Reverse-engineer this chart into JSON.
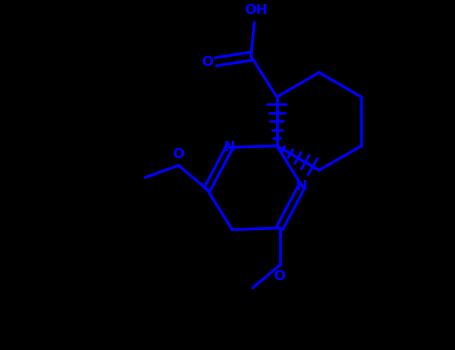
{
  "bg_color": "#000000",
  "bond_color": "#0000FF",
  "text_color": "#0000FF",
  "line_width": 2.0,
  "figsize": [
    4.55,
    3.5
  ],
  "dpi": 100,
  "xlim": [
    -2.8,
    2.8
  ],
  "ylim": [
    -2.8,
    2.2
  ]
}
